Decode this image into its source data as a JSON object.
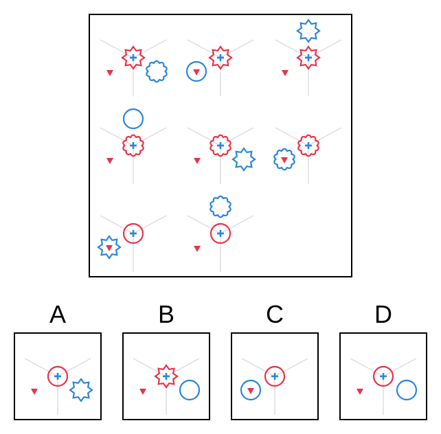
{
  "colors": {
    "red": "#e8334a",
    "blue": "#2a86dc",
    "guide": "#dddddd"
  },
  "puzzle": {
    "cells": [
      {
        "center": "star8",
        "blue": "flower",
        "blue_pos": "lower-right",
        "triangle_in_blue": false
      },
      {
        "center": "star8",
        "blue": "circle",
        "blue_pos": "lower-left",
        "triangle_in_blue": true
      },
      {
        "center": "star8",
        "blue": "star8",
        "blue_pos": "top",
        "triangle_in_blue": false
      },
      {
        "center": "flower",
        "blue": "circle",
        "blue_pos": "top",
        "triangle_in_blue": false
      },
      {
        "center": "flower",
        "blue": "star8",
        "blue_pos": "lower-right",
        "triangle_in_blue": false
      },
      {
        "center": "flower",
        "blue": "flower",
        "blue_pos": "lower-left",
        "triangle_in_blue": true
      },
      {
        "center": "circle",
        "blue": "star8",
        "blue_pos": "lower-left",
        "triangle_in_blue": true
      },
      {
        "center": "circle",
        "blue": "flower",
        "blue_pos": "top",
        "triangle_in_blue": false
      },
      null
    ]
  },
  "options": [
    {
      "label": "A",
      "center": "circle",
      "blue": "star8",
      "blue_pos": "lower-right",
      "triangle_in_blue": false
    },
    {
      "label": "B",
      "center": "star8",
      "blue": "circle",
      "blue_pos": "lower-right",
      "triangle_in_blue": false
    },
    {
      "label": "C",
      "center": "circle",
      "blue": "circle",
      "blue_pos": "lower-left",
      "triangle_in_blue": true
    },
    {
      "label": "D",
      "center": "circle",
      "blue": "circle",
      "blue_pos": "lower-right",
      "triangle_in_blue": false
    }
  ]
}
